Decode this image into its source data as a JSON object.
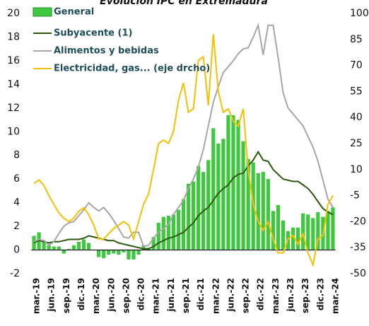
{
  "chart_data": {
    "type": "bar_line",
    "title": "Evolución IPC en Extremadura",
    "categories": [
      "mar.-19",
      null,
      null,
      "jun.-19",
      null,
      null,
      "sep.-19",
      null,
      null,
      "dic.-19",
      null,
      null,
      "mar.-20",
      null,
      null,
      "jun.-20",
      null,
      null,
      "sep.-20",
      null,
      null,
      "dic.-20",
      null,
      null,
      "mar.-21",
      null,
      null,
      "jun.-21",
      null,
      null,
      "sep.-21",
      null,
      null,
      "dic.-21",
      null,
      null,
      "mar.-22",
      null,
      null,
      "jun.-22",
      null,
      null,
      "sep.-22",
      null,
      null,
      "dic.-22",
      null,
      null,
      "mar.-23",
      null,
      null,
      "jun.-23",
      null,
      null,
      "sep.-23",
      null,
      null,
      "dic.-23",
      null,
      null,
      "mar.-24"
    ],
    "series": [
      {
        "name": "General",
        "kind": "bar",
        "color": "#3ec83e",
        "values": [
          1.2,
          1.5,
          0.8,
          0.4,
          0.3,
          0.3,
          -0.3,
          0.1,
          0.4,
          0.7,
          0.9,
          0.6,
          0,
          -0.6,
          -0.7,
          -0.4,
          -0.3,
          -0.4,
          -0.2,
          -0.8,
          -0.8,
          -0.4,
          0.4,
          0.2,
          1.1,
          2.3,
          2.8,
          2.9,
          3.0,
          3.4,
          4.3,
          5.6,
          5.8,
          7.1,
          6.6,
          7.6,
          10.3,
          9.0,
          9.4,
          11.4,
          11.4,
          11.0,
          9.2,
          7.7,
          7.4,
          6.5,
          6.6,
          6.0,
          3.3,
          3.8,
          2.5,
          1.6,
          1.9,
          1.9,
          3.1,
          3.0,
          2.7,
          3.2,
          2.8,
          3.3,
          3.6
        ]
      },
      {
        "name": "Subyacente (1)",
        "kind": "line",
        "color": "#2d5a0e",
        "values": [
          0.6,
          0.8,
          0.7,
          0.6,
          0.7,
          0.7,
          0.8,
          0.9,
          0.9,
          0.9,
          1.0,
          1.2,
          1.1,
          1.0,
          0.9,
          0.8,
          0.8,
          0.6,
          0.5,
          0.4,
          0.3,
          0.2,
          0.1,
          0.1,
          0.3,
          0.6,
          0.8,
          1.0,
          1.1,
          1.3,
          1.5,
          1.9,
          2.3,
          2.9,
          3.3,
          3.6,
          4.2,
          4.8,
          5.2,
          5.5,
          6.1,
          6.4,
          6.5,
          7.1,
          7.6,
          8.3,
          7.6,
          7.5,
          6.8,
          6.4,
          6.0,
          5.9,
          5.8,
          5.8,
          5.5,
          5.2,
          4.7,
          4.1,
          3.5,
          3.2,
          3.0
        ]
      },
      {
        "name": "Alimentos y bebidas",
        "kind": "line",
        "color": "#a6a6a6",
        "values": [
          0.7,
          0.9,
          0.8,
          0.4,
          0.7,
          1.4,
          2.0,
          2.3,
          2.4,
          2.9,
          3.4,
          4.0,
          3.6,
          3.3,
          3.6,
          3.1,
          2.5,
          1.8,
          1.1,
          1.0,
          1.5,
          1.5,
          0.3,
          0.4,
          1.0,
          1.5,
          1.8,
          2.2,
          3.0,
          3.6,
          4.2,
          5.2,
          6.0,
          7.0,
          8.5,
          10.5,
          12.5,
          13.8,
          15.0,
          15.5,
          16.0,
          16.6,
          17.0,
          17.1,
          18.0,
          19.0,
          16.5,
          19.0,
          19.0,
          16.3,
          13.3,
          12.0,
          11.5,
          11.0,
          10.5,
          9.6,
          8.7,
          7.5,
          5.9,
          4.3,
          3.6
        ]
      },
      {
        "name": "Electricidad, gas... (eje drcho)",
        "kind": "line",
        "axis": "y2",
        "color": "#f5c000",
        "values": [
          2,
          4,
          1,
          -5,
          -10,
          -15,
          -18,
          -20,
          -18,
          -14,
          -12,
          -16,
          -22,
          -30,
          -30,
          -27,
          -24,
          -22,
          -20,
          -22,
          -30,
          -20,
          -10,
          -4,
          10,
          25,
          27,
          25,
          32,
          50,
          60,
          43,
          45,
          73,
          75,
          47,
          88,
          55,
          43,
          45,
          38,
          35,
          45,
          10,
          -10,
          -20,
          -25,
          -20,
          -30,
          -38,
          -38,
          -30,
          -28,
          -33,
          -27,
          -38,
          -45,
          -30,
          -28,
          -10,
          -5
        ]
      }
    ],
    "ylim": [
      -2,
      20
    ],
    "yticks": [
      -2,
      0,
      2,
      4,
      6,
      8,
      10,
      12,
      14,
      16,
      18,
      20
    ],
    "y2lim": [
      -50,
      100
    ],
    "y2ticks": [
      -50,
      -35,
      -20,
      -5,
      10,
      25,
      40,
      55,
      70,
      85,
      100
    ],
    "legend": "upper left"
  }
}
